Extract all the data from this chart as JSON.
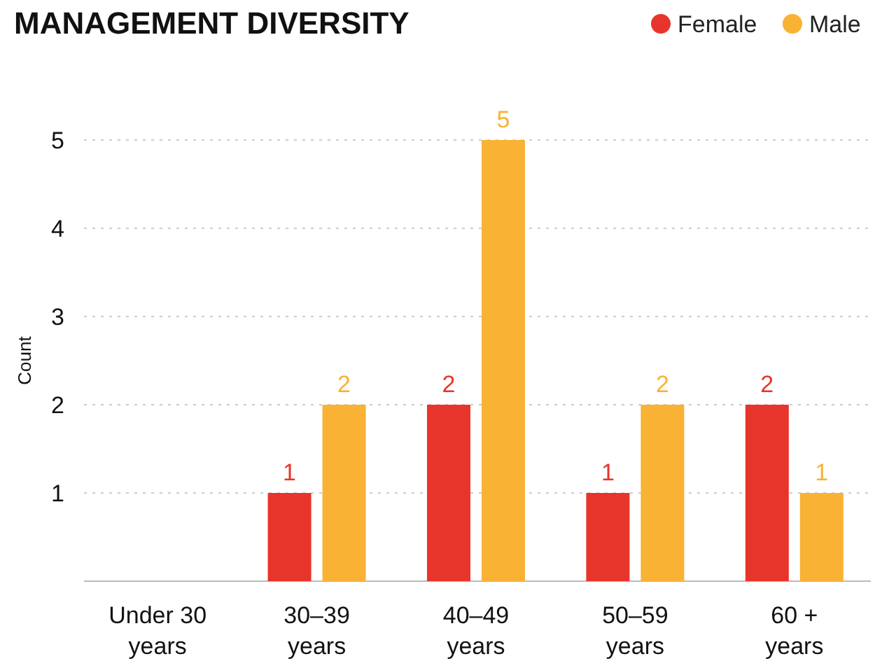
{
  "chart_data": {
    "type": "bar",
    "title": "MANAGEMENT DIVERSITY",
    "ylabel": "Count",
    "categories": [
      "Under 30 years",
      "30–39 years",
      "40–49 years",
      "50–59 years",
      "60 + years"
    ],
    "series": [
      {
        "name": "Female",
        "color": "#e8352b",
        "values": [
          0,
          1,
          2,
          1,
          2
        ],
        "value_labels": [
          null,
          "1",
          "2",
          "1",
          "2"
        ]
      },
      {
        "name": "Male",
        "color": "#f9b233",
        "values": [
          0,
          2,
          5,
          2,
          1
        ],
        "value_labels": [
          null,
          "2",
          "5",
          "2",
          "1"
        ]
      }
    ],
    "ylim": [
      0,
      5
    ],
    "yticks": [
      1,
      2,
      3,
      4,
      5
    ],
    "grid": "y",
    "legend": "top right"
  }
}
